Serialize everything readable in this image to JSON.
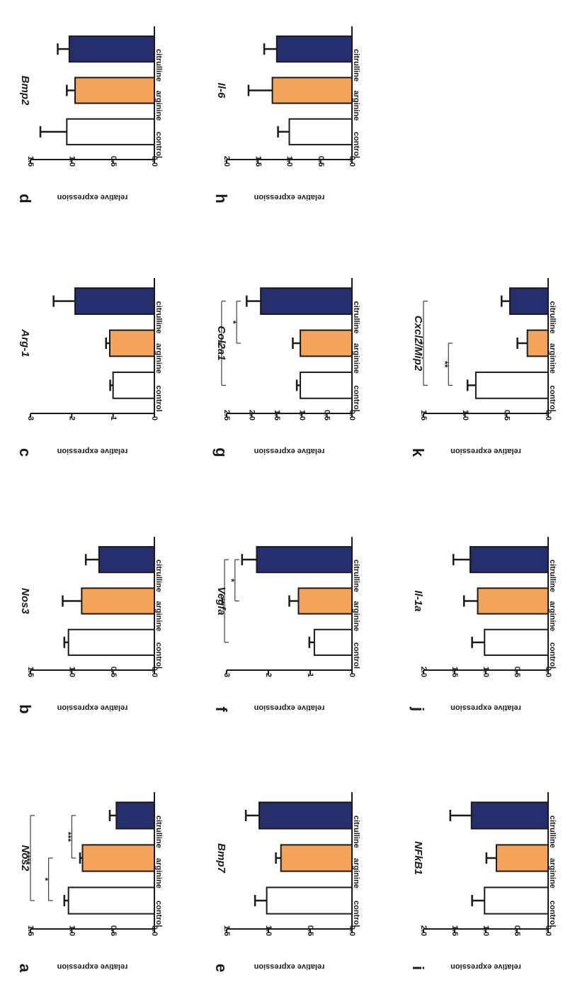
{
  "ylabel": "relative expression",
  "categories": [
    "control",
    "arginine",
    "citrulline"
  ],
  "colors": {
    "control": "#ffffff",
    "arginine": "#f4a35a",
    "citrulline": "#252f6e",
    "stroke": "#1a1a1a"
  },
  "chart_data": [
    {
      "type": "bar",
      "letter": "a",
      "title": "Nos2",
      "xlabel": "",
      "ylabel": "relative expression",
      "categories": [
        "control",
        "arginine",
        "citrulline"
      ],
      "values": [
        1.04,
        0.87,
        0.46
      ],
      "errors": [
        0.05,
        0.03,
        0.08
      ],
      "ylim": [
        0,
        1.5
      ],
      "ticks": [
        "0.0",
        "0.5",
        "1.0",
        "1.5"
      ],
      "sig": [
        {
          "from": 0,
          "to": 1,
          "label": "*",
          "y": 1.28
        },
        {
          "from": 1,
          "to": 2,
          "label": "***",
          "y": 1.0
        },
        {
          "from": 0,
          "to": 2,
          "label": "****",
          "y": 1.5
        }
      ]
    },
    {
      "type": "bar",
      "letter": "b",
      "title": "Nos3",
      "xlabel": "",
      "ylabel": "relative expression",
      "categories": [
        "control",
        "arginine",
        "citrulline"
      ],
      "values": [
        1.04,
        0.88,
        0.67
      ],
      "errors": [
        0.05,
        0.23,
        0.16
      ],
      "ylim": [
        0,
        1.5
      ],
      "ticks": [
        "0.0",
        "0.5",
        "1.0",
        "1.5"
      ],
      "sig": []
    },
    {
      "type": "bar",
      "letter": "c",
      "title": "Arg-1",
      "xlabel": "",
      "ylabel": "relative expression",
      "categories": [
        "control",
        "arginine",
        "citrulline"
      ],
      "values": [
        1.0,
        1.08,
        1.92
      ],
      "errors": [
        0.07,
        0.09,
        0.52
      ],
      "ylim": [
        0,
        3
      ],
      "ticks": [
        "0",
        "1",
        "2",
        "3"
      ],
      "sig": []
    },
    {
      "type": "bar",
      "letter": "d",
      "title": "Bmp2",
      "xlabel": "",
      "ylabel": "relative expression",
      "categories": [
        "control",
        "arginine",
        "citrulline"
      ],
      "values": [
        1.06,
        0.96,
        1.03
      ],
      "errors": [
        0.32,
        0.1,
        0.14
      ],
      "ylim": [
        0,
        1.5
      ],
      "ticks": [
        "0.0",
        "0.5",
        "1.0",
        "1.5"
      ],
      "sig": []
    },
    {
      "type": "bar",
      "letter": "e",
      "title": "Bmp7",
      "xlabel": "",
      "ylabel": "relative expression",
      "categories": [
        "control",
        "arginine",
        "citrulline"
      ],
      "values": [
        1.02,
        0.85,
        1.11
      ],
      "errors": [
        0.14,
        0.06,
        0.16
      ],
      "ylim": [
        0,
        1.5
      ],
      "ticks": [
        "0.0",
        "0.5",
        "1.0",
        "1.5"
      ],
      "sig": []
    },
    {
      "type": "bar",
      "letter": "f",
      "title": "Vegfa",
      "xlabel": "",
      "ylabel": "relative expression",
      "categories": [
        "control",
        "arginine",
        "citrulline"
      ],
      "values": [
        0.9,
        1.28,
        2.28
      ],
      "errors": [
        0.12,
        0.22,
        0.35
      ],
      "ylim": [
        0,
        3
      ],
      "ticks": [
        "0",
        "1",
        "2",
        "3"
      ],
      "sig": [
        {
          "from": 1,
          "to": 2,
          "label": "*",
          "y": 2.8
        },
        {
          "from": 0,
          "to": 2,
          "label": "**",
          "y": 3.05
        }
      ]
    },
    {
      "type": "bar",
      "letter": "g",
      "title": "Col2a1",
      "xlabel": "",
      "ylabel": "relative expression",
      "categories": [
        "control",
        "arginine",
        "citrulline"
      ],
      "values": [
        1.03,
        1.03,
        1.82
      ],
      "errors": [
        0.07,
        0.15,
        0.28
      ],
      "ylim": [
        0,
        2.5
      ],
      "ticks": [
        "0.0",
        "0.5",
        "1.0",
        "1.5",
        "2.0",
        "2.5"
      ],
      "sig": [
        {
          "from": 1,
          "to": 2,
          "label": "*",
          "y": 2.3
        },
        {
          "from": 0,
          "to": 2,
          "label": "*",
          "y": 2.6
        }
      ]
    },
    {
      "type": "bar",
      "letter": "h",
      "title": "Il-6",
      "xlabel": "",
      "ylabel": "relative expression",
      "categories": [
        "control",
        "arginine",
        "citrulline"
      ],
      "values": [
        1.0,
        1.27,
        1.2
      ],
      "errors": [
        0.18,
        0.38,
        0.2
      ],
      "ylim": [
        0,
        2.0
      ],
      "ticks": [
        "0.0",
        "0.5",
        "1.0",
        "1.5",
        "2.0"
      ],
      "sig": []
    },
    {
      "type": "bar",
      "letter": "i",
      "title": "NFkB1",
      "xlabel": "",
      "ylabel": "relative expression",
      "categories": [
        "control",
        "arginine",
        "citrulline"
      ],
      "values": [
        1.02,
        0.83,
        1.23
      ],
      "errors": [
        0.2,
        0.16,
        0.34
      ],
      "ylim": [
        0,
        2.0
      ],
      "ticks": [
        "0.0",
        "0.5",
        "1.0",
        "1.5",
        "2.0"
      ],
      "sig": []
    },
    {
      "type": "bar",
      "letter": "j",
      "title": "Il-1a",
      "xlabel": "",
      "ylabel": "relative expression",
      "categories": [
        "control",
        "arginine",
        "citrulline"
      ],
      "values": [
        1.02,
        1.13,
        1.25
      ],
      "errors": [
        0.2,
        0.22,
        0.27
      ],
      "ylim": [
        0,
        2.0
      ],
      "ticks": [
        "0.0",
        "0.5",
        "1.0",
        "1.5",
        "2.0"
      ],
      "sig": []
    },
    {
      "type": "bar",
      "letter": "k",
      "title": "Cxcl2/Mip2",
      "xlabel": "",
      "ylabel": "relative expression",
      "categories": [
        "control",
        "arginine",
        "citrulline"
      ],
      "values": [
        0.87,
        0.25,
        0.46
      ],
      "errors": [
        0.1,
        0.12,
        0.1
      ],
      "ylim": [
        0,
        1.5
      ],
      "ticks": [
        "0.0",
        "0.5",
        "1.0",
        "1.5"
      ],
      "sig": [
        {
          "from": 0,
          "to": 1,
          "label": "**",
          "y": 1.2
        },
        {
          "from": 0,
          "to": 2,
          "label": "*",
          "y": 1.5
        }
      ]
    }
  ]
}
